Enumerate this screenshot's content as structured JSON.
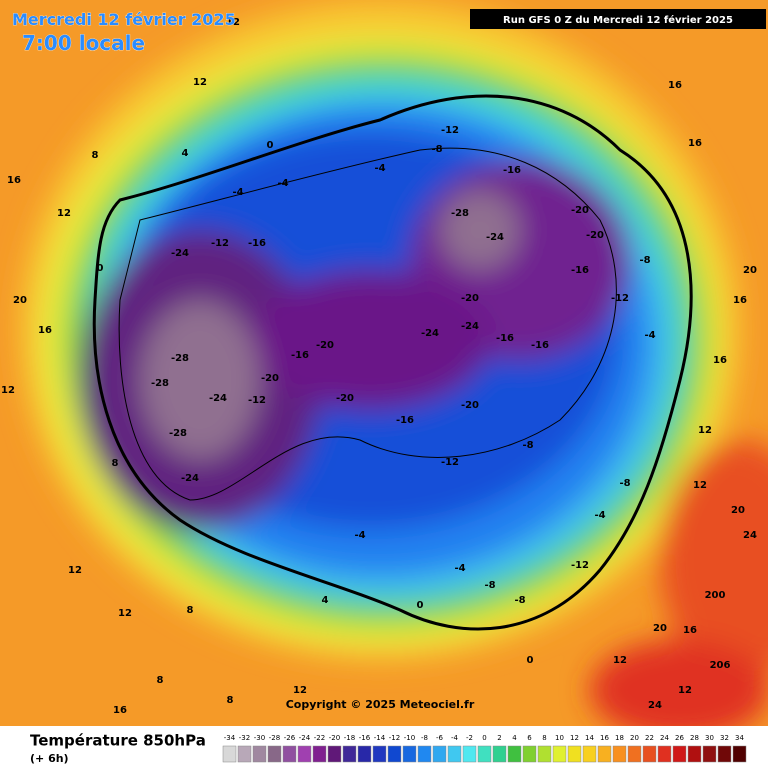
{
  "header": {
    "date": "Mercredi 12 février 2025",
    "local_time": "7:00 locale",
    "run": "Run GFS 0 Z du Mercredi 12 février 2025"
  },
  "copyright": "Copyright © 2025 Meteociel.fr",
  "footer": {
    "title": "Température 850hPa",
    "lead": "(+ 6h)"
  },
  "colorbar": {
    "ticks": [
      -34,
      -32,
      -30,
      -28,
      -26,
      -24,
      -22,
      -20,
      -18,
      -16,
      -14,
      -12,
      -10,
      -8,
      -6,
      -4,
      -2,
      0,
      2,
      4,
      6,
      8,
      10,
      12,
      14,
      16,
      18,
      20,
      22,
      24,
      26,
      28,
      30,
      32,
      34
    ],
    "colors": [
      "#d8d8d8",
      "#b8a8b8",
      "#a088a0",
      "#886888",
      "#9050a0",
      "#a040b0",
      "#802090",
      "#601878",
      "#402898",
      "#2828a8",
      "#2038c0",
      "#1048d0",
      "#1868e0",
      "#2088f0",
      "#30a8f0",
      "#40c8f0",
      "#50e8f0",
      "#40e0c0",
      "#30d090",
      "#40c040",
      "#80d030",
      "#b0e030",
      "#e0f030",
      "#f0e020",
      "#f8d020",
      "#f8b020",
      "#f89020",
      "#f07020",
      "#e85020",
      "#e03020",
      "#d01818",
      "#b01010",
      "#901010",
      "#700808",
      "#500000"
    ]
  },
  "map_labels": [
    12,
    12,
    8,
    4,
    16,
    0,
    12,
    0,
    -4,
    -4,
    -24,
    -12,
    -16,
    -4,
    -12,
    -8,
    -16,
    -28,
    -24,
    -20,
    -20,
    -20,
    -24,
    -24,
    -16,
    -16,
    -16,
    -8,
    -12,
    -4,
    -28,
    -28,
    -24,
    -28,
    -24,
    -12,
    -16,
    -20,
    -20,
    -16,
    -20,
    -12,
    -8,
    -8,
    -20,
    8,
    -4,
    -4,
    -8,
    -8,
    -12,
    -4,
    12,
    20,
    200,
    20,
    16,
    24,
    206,
    12,
    12,
    0,
    0,
    4,
    8,
    12,
    12,
    12,
    16,
    20,
    20,
    16,
    16,
    12,
    16,
    16,
    12,
    8,
    8,
    16,
    24
  ]
}
